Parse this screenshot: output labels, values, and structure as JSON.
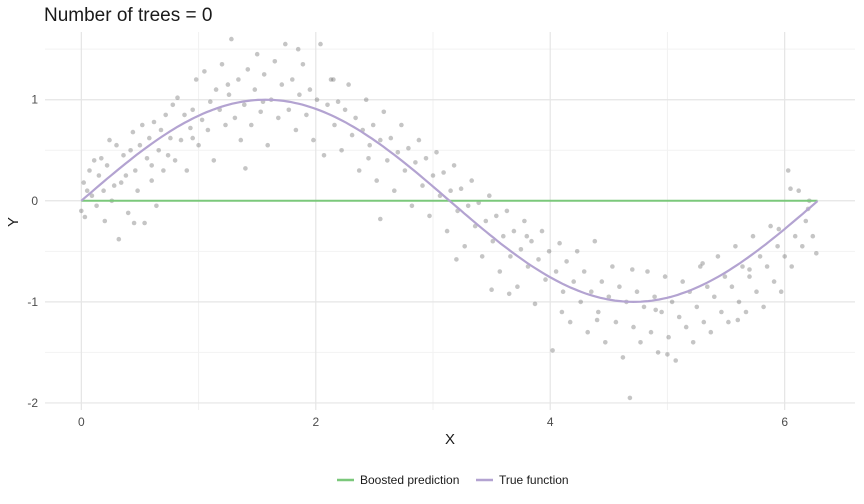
{
  "chart_data": {
    "type": "scatter",
    "title": "Number of trees = 0",
    "xlabel": "X",
    "ylabel": "Y",
    "xlim": [
      -0.31,
      6.6
    ],
    "ylim": [
      -2.07,
      1.67
    ],
    "x_ticks": [
      0,
      2,
      4,
      6
    ],
    "y_ticks": [
      -2,
      -1,
      0,
      1
    ],
    "grid": true,
    "legend_position": "bottom",
    "colors": {
      "points": "#595959",
      "boosted": "#7bc87b",
      "true_function": "#b3a3d1",
      "grid_major": "#e5e5e5",
      "grid_minor": "#f2f2f2"
    },
    "series": [
      {
        "name": "Boosted prediction",
        "type": "line",
        "x": [
          0,
          6.28
        ],
        "y": [
          0,
          0
        ]
      },
      {
        "name": "True function",
        "type": "line",
        "function": "sin(x)",
        "x_range": [
          0,
          6.28
        ]
      }
    ],
    "scatter_points": [
      [
        0.0,
        -0.1
      ],
      [
        0.02,
        0.18
      ],
      [
        0.03,
        -0.16
      ],
      [
        0.05,
        0.1
      ],
      [
        0.07,
        0.3
      ],
      [
        0.09,
        0.05
      ],
      [
        0.11,
        0.4
      ],
      [
        0.13,
        -0.05
      ],
      [
        0.15,
        0.25
      ],
      [
        0.17,
        0.42
      ],
      [
        0.19,
        0.1
      ],
      [
        0.2,
        -0.2
      ],
      [
        0.22,
        0.35
      ],
      [
        0.24,
        0.6
      ],
      [
        0.26,
        0.0
      ],
      [
        0.28,
        0.15
      ],
      [
        0.3,
        0.55
      ],
      [
        0.32,
        -0.38
      ],
      [
        0.34,
        0.18
      ],
      [
        0.36,
        0.45
      ],
      [
        0.38,
        0.25
      ],
      [
        0.4,
        -0.12
      ],
      [
        0.42,
        0.5
      ],
      [
        0.44,
        0.68
      ],
      [
        0.46,
        0.3
      ],
      [
        0.48,
        0.1
      ],
      [
        0.5,
        0.55
      ],
      [
        0.52,
        0.75
      ],
      [
        0.54,
        -0.22
      ],
      [
        0.56,
        0.42
      ],
      [
        0.58,
        0.62
      ],
      [
        0.6,
        0.2
      ],
      [
        0.62,
        0.78
      ],
      [
        0.64,
        -0.05
      ],
      [
        0.66,
        0.5
      ],
      [
        0.68,
        0.7
      ],
      [
        0.7,
        0.3
      ],
      [
        0.72,
        0.85
      ],
      [
        0.74,
        0.45
      ],
      [
        0.76,
        0.62
      ],
      [
        0.78,
        0.95
      ],
      [
        0.8,
        0.4
      ],
      [
        0.82,
        1.02
      ],
      [
        0.85,
        0.6
      ],
      [
        0.88,
        0.85
      ],
      [
        0.9,
        0.3
      ],
      [
        0.93,
        0.72
      ],
      [
        0.95,
        0.9
      ],
      [
        0.98,
        1.2
      ],
      [
        1.0,
        0.55
      ],
      [
        1.03,
        0.8
      ],
      [
        1.05,
        1.28
      ],
      [
        1.08,
        0.7
      ],
      [
        1.1,
        0.98
      ],
      [
        1.13,
        0.4
      ],
      [
        1.15,
        1.1
      ],
      [
        1.18,
        0.9
      ],
      [
        1.2,
        1.35
      ],
      [
        1.23,
        0.75
      ],
      [
        1.26,
        1.05
      ],
      [
        1.28,
        1.6
      ],
      [
        1.31,
        0.82
      ],
      [
        1.34,
        1.2
      ],
      [
        1.36,
        0.6
      ],
      [
        1.39,
        0.95
      ],
      [
        1.42,
        1.3
      ],
      [
        1.45,
        0.75
      ],
      [
        1.48,
        1.1
      ],
      [
        1.5,
        1.45
      ],
      [
        1.53,
        0.88
      ],
      [
        1.56,
        1.25
      ],
      [
        1.59,
        0.55
      ],
      [
        1.62,
        1.0
      ],
      [
        1.65,
        1.38
      ],
      [
        1.68,
        0.82
      ],
      [
        1.71,
        1.15
      ],
      [
        1.74,
        1.55
      ],
      [
        1.77,
        0.9
      ],
      [
        1.8,
        1.2
      ],
      [
        1.83,
        0.7
      ],
      [
        1.86,
        1.05
      ],
      [
        1.89,
        1.35
      ],
      [
        1.92,
        0.85
      ],
      [
        1.95,
        1.1
      ],
      [
        1.98,
        0.6
      ],
      [
        2.01,
        1.0
      ],
      [
        2.04,
        1.55
      ],
      [
        2.07,
        0.45
      ],
      [
        2.1,
        0.95
      ],
      [
        2.13,
        1.2
      ],
      [
        2.16,
        0.75
      ],
      [
        2.19,
        0.98
      ],
      [
        2.22,
        0.5
      ],
      [
        2.25,
        0.9
      ],
      [
        2.28,
        1.15
      ],
      [
        2.31,
        0.65
      ],
      [
        2.34,
        0.82
      ],
      [
        2.37,
        0.3
      ],
      [
        2.4,
        0.7
      ],
      [
        2.43,
        1.0
      ],
      [
        2.46,
        0.55
      ],
      [
        2.49,
        0.75
      ],
      [
        2.52,
        0.2
      ],
      [
        2.55,
        0.6
      ],
      [
        2.58,
        0.88
      ],
      [
        2.61,
        0.4
      ],
      [
        2.64,
        0.62
      ],
      [
        2.67,
        0.1
      ],
      [
        2.7,
        0.48
      ],
      [
        2.73,
        0.75
      ],
      [
        2.76,
        0.3
      ],
      [
        2.79,
        0.52
      ],
      [
        2.82,
        -0.05
      ],
      [
        2.85,
        0.38
      ],
      [
        2.88,
        0.6
      ],
      [
        2.91,
        0.15
      ],
      [
        2.94,
        0.42
      ],
      [
        2.97,
        -0.15
      ],
      [
        3.0,
        0.25
      ],
      [
        3.03,
        0.48
      ],
      [
        3.06,
        0.05
      ],
      [
        3.09,
        0.28
      ],
      [
        3.12,
        -0.3
      ],
      [
        3.15,
        0.1
      ],
      [
        3.18,
        0.35
      ],
      [
        3.21,
        -0.1
      ],
      [
        3.24,
        0.12
      ],
      [
        3.27,
        -0.45
      ],
      [
        3.3,
        -0.05
      ],
      [
        3.33,
        0.2
      ],
      [
        3.36,
        -0.25
      ],
      [
        3.39,
        -0.02
      ],
      [
        3.42,
        -0.55
      ],
      [
        3.45,
        -0.2
      ],
      [
        3.48,
        0.05
      ],
      [
        3.51,
        -0.4
      ],
      [
        3.54,
        -0.15
      ],
      [
        3.57,
        -0.7
      ],
      [
        3.6,
        -0.35
      ],
      [
        3.63,
        -0.1
      ],
      [
        3.66,
        -0.55
      ],
      [
        3.69,
        -0.3
      ],
      [
        3.72,
        -0.85
      ],
      [
        3.75,
        -0.48
      ],
      [
        3.78,
        -0.2
      ],
      [
        3.81,
        -0.65
      ],
      [
        3.84,
        -0.4
      ],
      [
        3.87,
        -1.02
      ],
      [
        3.9,
        -0.58
      ],
      [
        3.93,
        -0.3
      ],
      [
        3.96,
        -0.78
      ],
      [
        3.99,
        -0.5
      ],
      [
        4.02,
        -1.48
      ],
      [
        4.05,
        -0.7
      ],
      [
        4.08,
        -0.42
      ],
      [
        4.11,
        -0.9
      ],
      [
        4.14,
        -0.6
      ],
      [
        4.17,
        -1.2
      ],
      [
        4.2,
        -0.8
      ],
      [
        4.23,
        -0.5
      ],
      [
        4.26,
        -1.0
      ],
      [
        4.29,
        -0.7
      ],
      [
        4.32,
        -1.3
      ],
      [
        4.35,
        -0.9
      ],
      [
        4.38,
        -0.4
      ],
      [
        4.41,
        -1.1
      ],
      [
        4.44,
        -0.8
      ],
      [
        4.47,
        -1.4
      ],
      [
        4.5,
        -0.95
      ],
      [
        4.53,
        -0.65
      ],
      [
        4.56,
        -1.2
      ],
      [
        4.59,
        -0.85
      ],
      [
        4.62,
        -1.55
      ],
      [
        4.65,
        -1.0
      ],
      [
        4.68,
        -1.95
      ],
      [
        4.71,
        -1.25
      ],
      [
        4.74,
        -0.9
      ],
      [
        4.77,
        -1.4
      ],
      [
        4.8,
        -1.05
      ],
      [
        4.83,
        -0.7
      ],
      [
        4.86,
        -1.3
      ],
      [
        4.89,
        -0.95
      ],
      [
        4.92,
        -1.5
      ],
      [
        4.95,
        -1.1
      ],
      [
        4.98,
        -0.75
      ],
      [
        5.01,
        -1.35
      ],
      [
        5.04,
        -1.0
      ],
      [
        5.07,
        -1.58
      ],
      [
        5.1,
        -1.15
      ],
      [
        5.13,
        -0.8
      ],
      [
        5.16,
        -1.25
      ],
      [
        5.19,
        -0.9
      ],
      [
        5.22,
        -1.4
      ],
      [
        5.25,
        -1.05
      ],
      [
        5.28,
        -0.65
      ],
      [
        5.31,
        -1.2
      ],
      [
        5.34,
        -0.85
      ],
      [
        5.37,
        -1.3
      ],
      [
        5.4,
        -0.95
      ],
      [
        5.43,
        -0.55
      ],
      [
        5.46,
        -1.1
      ],
      [
        5.49,
        -0.75
      ],
      [
        5.52,
        -1.2
      ],
      [
        5.55,
        -0.85
      ],
      [
        5.58,
        -0.45
      ],
      [
        5.61,
        -1.0
      ],
      [
        5.64,
        -0.65
      ],
      [
        5.67,
        -1.1
      ],
      [
        5.7,
        -0.75
      ],
      [
        5.73,
        -0.35
      ],
      [
        5.76,
        -0.9
      ],
      [
        5.79,
        -0.55
      ],
      [
        5.82,
        -1.05
      ],
      [
        5.85,
        -0.65
      ],
      [
        5.88,
        -0.25
      ],
      [
        5.91,
        -0.8
      ],
      [
        5.94,
        -0.45
      ],
      [
        5.97,
        -0.9
      ],
      [
        6.0,
        -0.55
      ],
      [
        6.03,
        0.3
      ],
      [
        6.06,
        -0.65
      ],
      [
        6.09,
        -0.35
      ],
      [
        6.12,
        0.1
      ],
      [
        6.15,
        -0.45
      ],
      [
        6.18,
        -0.2
      ],
      [
        6.21,
        0.0
      ],
      [
        6.24,
        -0.35
      ],
      [
        6.27,
        -0.52
      ],
      [
        0.6,
        0.35
      ],
      [
        0.95,
        0.62
      ],
      [
        1.25,
        1.15
      ],
      [
        1.55,
        0.98
      ],
      [
        1.85,
        1.5
      ],
      [
        2.15,
        1.2
      ],
      [
        2.45,
        0.42
      ],
      [
        3.2,
        -0.58
      ],
      [
        3.5,
        -0.88
      ],
      [
        3.8,
        -0.35
      ],
      [
        4.1,
        -1.1
      ],
      [
        4.4,
        -1.18
      ],
      [
        4.7,
        -0.68
      ],
      [
        5.0,
        -1.52
      ],
      [
        5.3,
        -0.62
      ],
      [
        5.6,
        -1.18
      ],
      [
        5.95,
        -0.28
      ],
      [
        6.05,
        0.12
      ],
      [
        6.2,
        -0.08
      ],
      [
        1.4,
        0.32
      ],
      [
        2.55,
        -0.18
      ],
      [
        0.45,
        -0.22
      ],
      [
        3.65,
        -0.92
      ],
      [
        4.9,
        -1.08
      ],
      [
        5.7,
        -0.68
      ]
    ]
  }
}
